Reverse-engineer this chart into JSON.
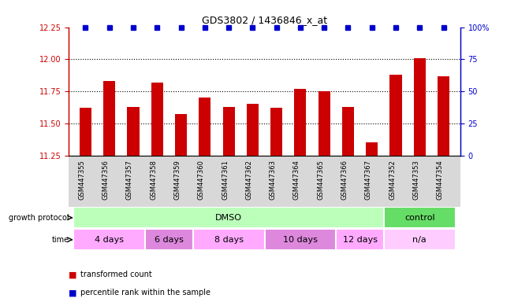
{
  "title": "GDS3802 / 1436846_x_at",
  "samples": [
    "GSM447355",
    "GSM447356",
    "GSM447357",
    "GSM447358",
    "GSM447359",
    "GSM447360",
    "GSM447361",
    "GSM447362",
    "GSM447363",
    "GSM447364",
    "GSM447365",
    "GSM447366",
    "GSM447367",
    "GSM447352",
    "GSM447353",
    "GSM447354"
  ],
  "bar_values": [
    11.62,
    11.83,
    11.63,
    11.82,
    11.57,
    11.7,
    11.63,
    11.65,
    11.62,
    11.77,
    11.75,
    11.63,
    11.35,
    11.88,
    12.01,
    11.87
  ],
  "percentile_values": [
    100,
    100,
    100,
    100,
    100,
    100,
    100,
    100,
    100,
    100,
    100,
    100,
    100,
    100,
    100,
    100
  ],
  "bar_color": "#cc0000",
  "percentile_color": "#0000cc",
  "ylim_left": [
    11.25,
    12.25
  ],
  "ylim_right": [
    0,
    100
  ],
  "yticks_left": [
    11.25,
    11.5,
    11.75,
    12.0,
    12.25
  ],
  "yticks_right": [
    0,
    25,
    50,
    75,
    100
  ],
  "ytick_labels_right": [
    "0",
    "25",
    "50",
    "75",
    "100%"
  ],
  "grid_lines": [
    11.5,
    11.75,
    12.0
  ],
  "growth_protocol_groups": [
    {
      "label": "DMSO",
      "start": 0,
      "end": 13,
      "color": "#bbffbb"
    },
    {
      "label": "control",
      "start": 13,
      "end": 16,
      "color": "#66dd66"
    }
  ],
  "time_groups": [
    {
      "label": "4 days",
      "start": 0,
      "end": 3,
      "color": "#ffaaff"
    },
    {
      "label": "6 days",
      "start": 3,
      "end": 5,
      "color": "#dd88dd"
    },
    {
      "label": "8 days",
      "start": 5,
      "end": 8,
      "color": "#ffaaff"
    },
    {
      "label": "10 days",
      "start": 8,
      "end": 11,
      "color": "#dd88dd"
    },
    {
      "label": "12 days",
      "start": 11,
      "end": 13,
      "color": "#ffaaff"
    },
    {
      "label": "n/a",
      "start": 13,
      "end": 16,
      "color": "#ffccff"
    }
  ],
  "legend_bar_label": "transformed count",
  "legend_pct_label": "percentile rank within the sample",
  "growth_label": "growth protocol",
  "time_label": "time"
}
